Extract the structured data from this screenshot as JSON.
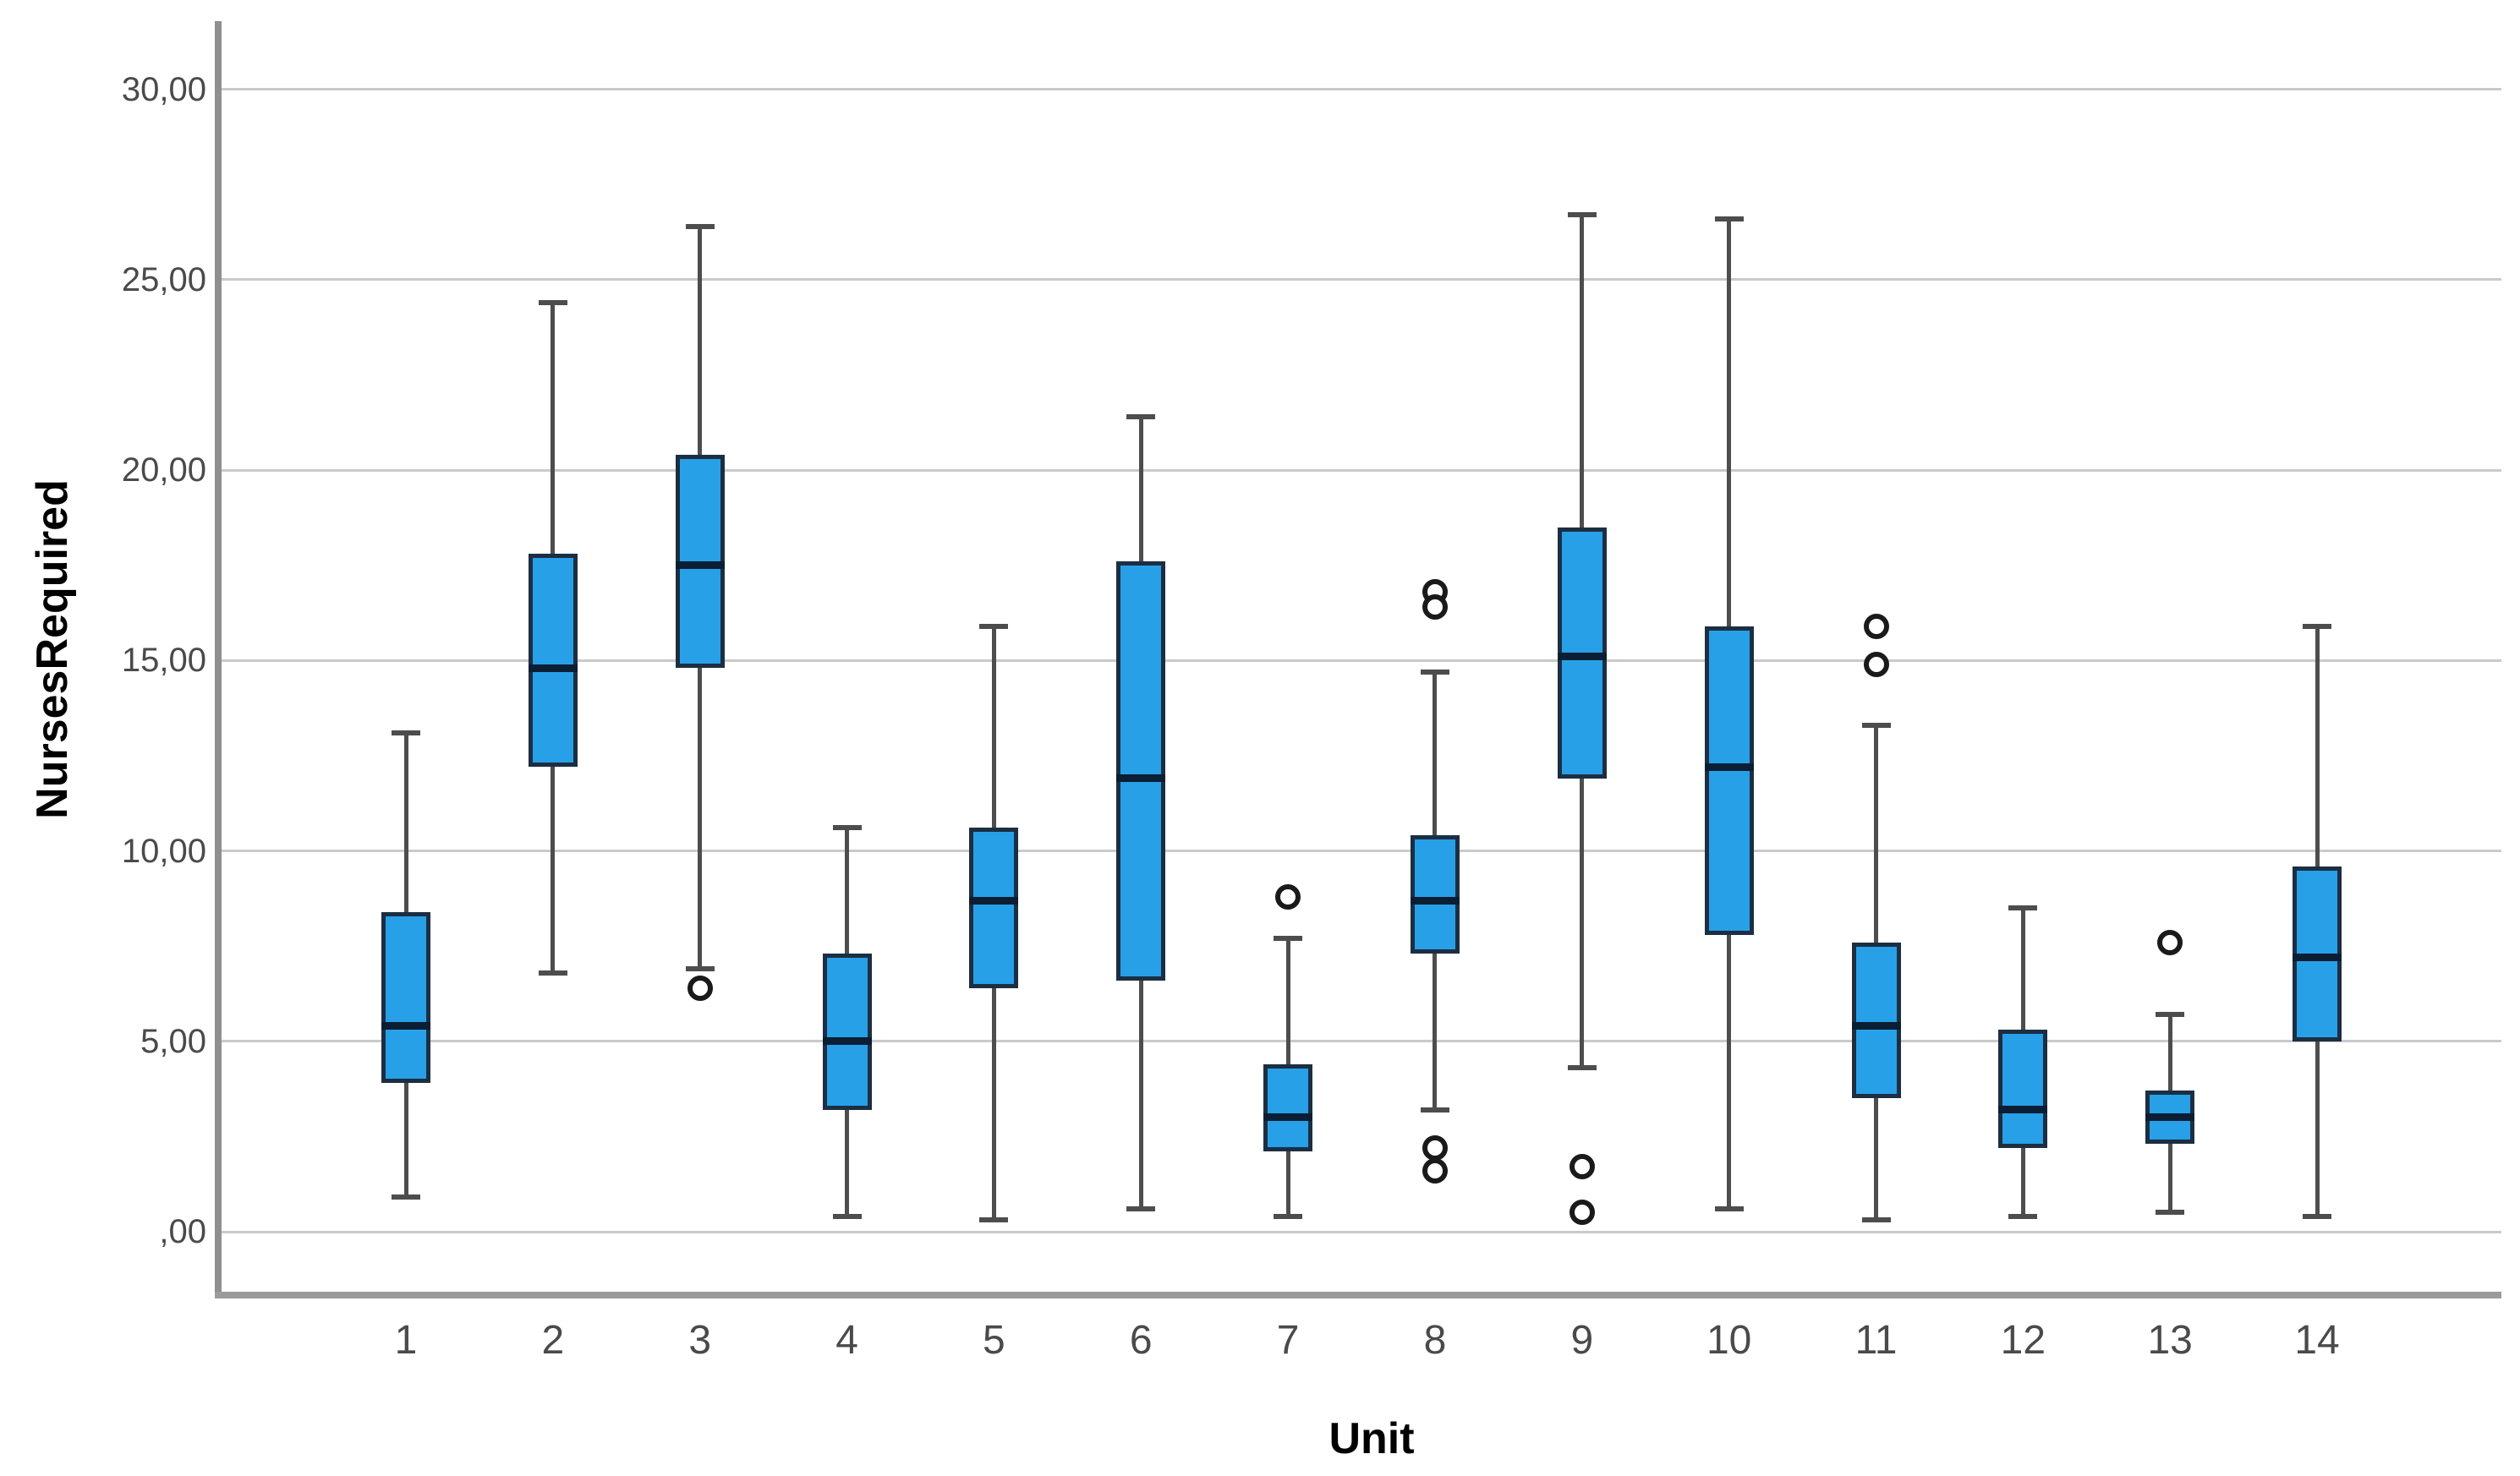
{
  "chart_data": {
    "type": "boxplot",
    "title": "",
    "xlabel": "Unit",
    "ylabel": "NursesRequired",
    "y_ticks": [
      ",00",
      "5,00",
      "10,00",
      "15,00",
      "20,00",
      "25,00",
      "30,00"
    ],
    "y_tick_values": [
      0,
      5,
      10,
      15,
      20,
      25,
      30
    ],
    "ylim": [
      -1.7,
      31.8
    ],
    "grid": "horizontal-only",
    "legend": "none",
    "categories": [
      "1",
      "2",
      "3",
      "4",
      "5",
      "6",
      "7",
      "8",
      "9",
      "10",
      "11",
      "12",
      "13",
      "14"
    ],
    "series": [
      {
        "category": "1",
        "whisker_low": 0.9,
        "q1": 3.9,
        "median": 5.4,
        "q3": 8.4,
        "whisker_high": 13.1,
        "outliers": []
      },
      {
        "category": "2",
        "whisker_low": 6.8,
        "q1": 12.2,
        "median": 14.8,
        "q3": 17.8,
        "whisker_high": 24.4,
        "outliers": []
      },
      {
        "category": "3",
        "whisker_low": 6.9,
        "q1": 14.8,
        "median": 17.5,
        "q3": 20.4,
        "whisker_high": 26.4,
        "outliers": [
          6.4
        ]
      },
      {
        "category": "4",
        "whisker_low": 0.4,
        "q1": 3.2,
        "median": 5.0,
        "q3": 7.3,
        "whisker_high": 10.6,
        "outliers": []
      },
      {
        "category": "5",
        "whisker_low": 0.3,
        "q1": 6.4,
        "median": 8.7,
        "q3": 10.6,
        "whisker_high": 15.9,
        "outliers": []
      },
      {
        "category": "6",
        "whisker_low": 0.6,
        "q1": 6.6,
        "median": 11.9,
        "q3": 17.6,
        "whisker_high": 21.4,
        "outliers": []
      },
      {
        "category": "7",
        "whisker_low": 0.4,
        "q1": 2.1,
        "median": 3.0,
        "q3": 4.4,
        "whisker_high": 7.7,
        "outliers": [
          8.8
        ]
      },
      {
        "category": "8",
        "whisker_low": 3.2,
        "q1": 7.3,
        "median": 8.7,
        "q3": 10.4,
        "whisker_high": 14.7,
        "outliers": [
          16.8,
          16.4,
          2.2,
          1.6
        ]
      },
      {
        "category": "9",
        "whisker_low": 4.3,
        "q1": 11.9,
        "median": 15.1,
        "q3": 18.5,
        "whisker_high": 26.7,
        "outliers": [
          1.7,
          0.5
        ]
      },
      {
        "category": "10",
        "whisker_low": 0.6,
        "q1": 7.8,
        "median": 12.2,
        "q3": 15.9,
        "whisker_high": 26.6,
        "outliers": []
      },
      {
        "category": "11",
        "whisker_low": 0.3,
        "q1": 3.5,
        "median": 5.4,
        "q3": 7.6,
        "whisker_high": 13.3,
        "outliers": [
          15.9,
          14.9
        ]
      },
      {
        "category": "12",
        "whisker_low": 0.4,
        "q1": 2.2,
        "median": 3.2,
        "q3": 5.3,
        "whisker_high": 8.5,
        "outliers": []
      },
      {
        "category": "13",
        "whisker_low": 0.5,
        "q1": 2.3,
        "median": 3.0,
        "q3": 3.7,
        "whisker_high": 5.7,
        "outliers": [
          7.6
        ]
      },
      {
        "category": "14",
        "whisker_low": 0.4,
        "q1": 5.0,
        "median": 7.2,
        "q3": 9.6,
        "whisker_high": 15.9,
        "outliers": []
      }
    ],
    "colors": {
      "box_fill": "#27a0e8",
      "box_border": "#1c2e42",
      "median_line": "#0b1e33",
      "whisker": "#4d4d4d",
      "outlier_stroke": "#1a1a1a",
      "gridline": "#cacaca",
      "axis_line": "#8f8f8f",
      "tick_label": "#4a4a4a",
      "axis_title": "#000000",
      "background": "#ffffff"
    }
  }
}
